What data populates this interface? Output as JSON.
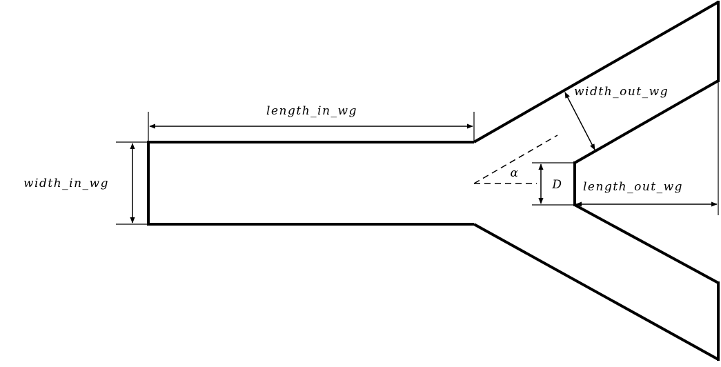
{
  "diagram": {
    "colors": {
      "stroke": "#000000",
      "background": "#ffffff"
    },
    "labels": {
      "length_in_wg": "length_in_wg",
      "width_in_wg": "width_in_wg",
      "width_out_wg": "width_out_wg",
      "length_out_wg": "length_out_wg",
      "alpha": "α",
      "D": "D"
    }
  }
}
